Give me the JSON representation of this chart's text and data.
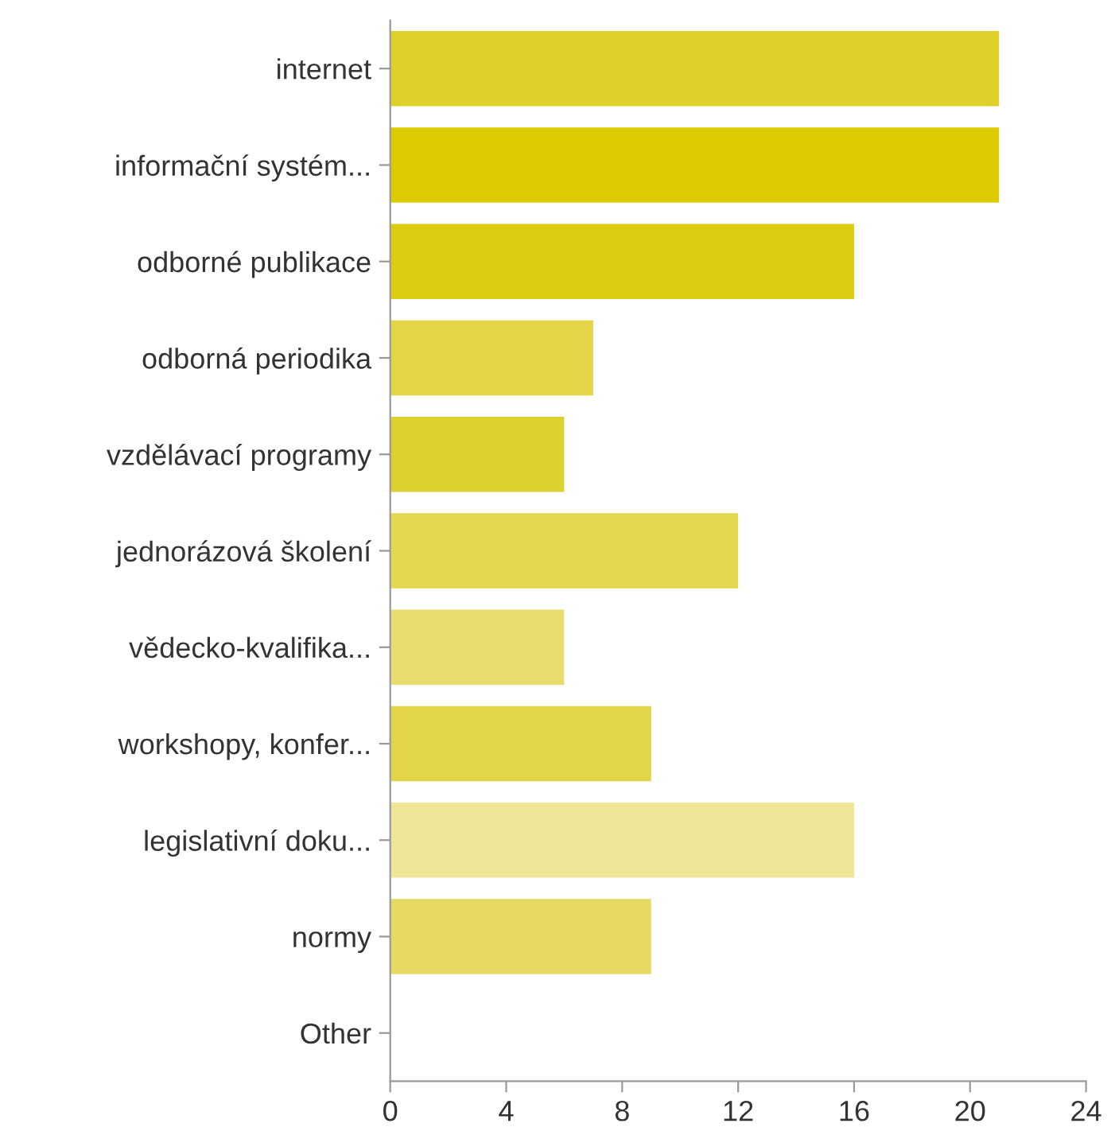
{
  "chart_data": {
    "type": "bar",
    "orientation": "horizontal",
    "categories": [
      "internet",
      "informační systém...",
      "odborné publikace",
      "odborná periodika",
      "vzdělávací programy",
      "jednorázová školení",
      "vědecko-kvalifika...",
      "workshopy, konfer...",
      "legislativní doku...",
      "normy",
      "Other"
    ],
    "values": [
      21,
      21,
      16,
      7,
      6,
      12,
      6,
      9,
      16,
      9,
      0
    ],
    "colors": [
      "#e0d02a",
      "#dccb00",
      "#dccb10",
      "#e3d545",
      "#ded030",
      "#e4d84e",
      "#e8dc6c",
      "#e2d54a",
      "#efe698",
      "#e6da64",
      "#e6da64"
    ],
    "xlim": [
      0,
      24
    ],
    "xticks": [
      0,
      4,
      8,
      12,
      16,
      20,
      24
    ],
    "grid": false,
    "legend": false
  }
}
